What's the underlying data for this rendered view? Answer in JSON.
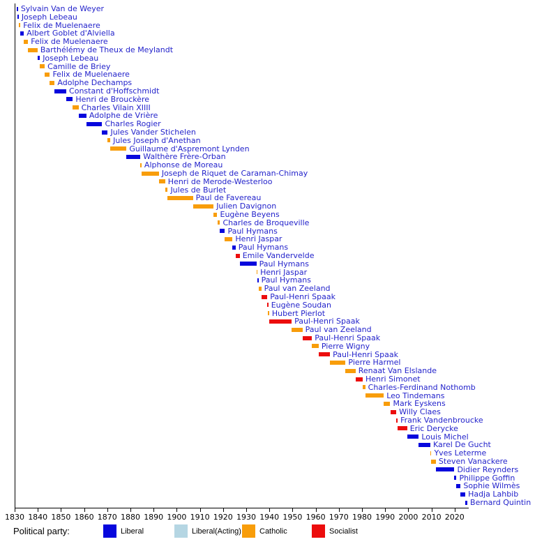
{
  "chart_data": {
    "type": "timeline",
    "title": "",
    "description": "Gantt-style timeline of Belgian foreign ministers colored by political party",
    "x_axis": {
      "min": 1830,
      "max": 2026,
      "tick_start": 1830,
      "tick_end": 2020,
      "tick_step": 10,
      "grid": false
    },
    "label_color": "#2323cb",
    "legend": {
      "title": "Political party:",
      "position": "bottom",
      "items": [
        {
          "label": "Liberal",
          "color": "#0707dd"
        },
        {
          "label": "Liberal(Acting)",
          "color": "#b5d6e3"
        },
        {
          "label": "Catholic",
          "color": "#f89d0a"
        },
        {
          "label": "Socialist",
          "color": "#ec0d0d"
        }
      ]
    },
    "ministers": [
      {
        "name": "Sylvain Van de Weyer",
        "party": "Liberal",
        "start": 1831.0,
        "end": 1831.3
      },
      {
        "name": "Joseph Lebeau",
        "party": "Liberal",
        "start": 1831.3,
        "end": 1831.7
      },
      {
        "name": "Felix de Muelenaere",
        "party": "Catholic",
        "start": 1831.7,
        "end": 1832.5
      },
      {
        "name": "Albert Goblet d'Alviella",
        "party": "Liberal",
        "start": 1832.5,
        "end": 1834.0
      },
      {
        "name": "Felix de Muelenaere",
        "party": "Catholic",
        "start": 1834.0,
        "end": 1835.8
      },
      {
        "name": "Barthélémy de Theux de Meylandt",
        "party": "Catholic",
        "start": 1835.8,
        "end": 1839.9
      },
      {
        "name": "Joseph Lebeau",
        "party": "Liberal",
        "start": 1839.9,
        "end": 1840.9
      },
      {
        "name": "Camille de Briey",
        "party": "Catholic",
        "start": 1840.9,
        "end": 1843.0
      },
      {
        "name": "Felix de Muelenaere",
        "party": "Catholic",
        "start": 1843.0,
        "end": 1845.2
      },
      {
        "name": "Adolphe Dechamps",
        "party": "Catholic",
        "start": 1845.2,
        "end": 1847.3
      },
      {
        "name": "Constant d'Hoffschmidt",
        "party": "Liberal",
        "start": 1847.3,
        "end": 1852.3
      },
      {
        "name": "Henri de Brouckère",
        "party": "Liberal",
        "start": 1852.3,
        "end": 1855.1
      },
      {
        "name": "Charles Vilain XIIII",
        "party": "Catholic",
        "start": 1855.1,
        "end": 1857.6
      },
      {
        "name": "Adolphe de Vrière",
        "party": "Liberal",
        "start": 1857.6,
        "end": 1861.0
      },
      {
        "name": "Charles Rogier",
        "party": "Liberal",
        "start": 1861.0,
        "end": 1867.8
      },
      {
        "name": "Jules Vander Stichelen",
        "party": "Liberal",
        "start": 1867.8,
        "end": 1870.2
      },
      {
        "name": "Jules Joseph d'Anethan",
        "party": "Catholic",
        "start": 1870.2,
        "end": 1871.3
      },
      {
        "name": "Guillaume d'Aspremont Lynden",
        "party": "Catholic",
        "start": 1871.3,
        "end": 1878.3
      },
      {
        "name": "Walthère Frère-Orban",
        "party": "Liberal",
        "start": 1878.3,
        "end": 1884.3
      },
      {
        "name": "Alphonse de Moreau",
        "party": "Catholic",
        "start": 1884.3,
        "end": 1884.8
      },
      {
        "name": "Joseph de Riquet de Caraman-Chimay",
        "party": "Catholic",
        "start": 1884.8,
        "end": 1892.3
      },
      {
        "name": "Henri de Merode-Westerloo",
        "party": "Catholic",
        "start": 1892.3,
        "end": 1895.0
      },
      {
        "name": "Jules de Burlet",
        "party": "Catholic",
        "start": 1895.0,
        "end": 1896.1
      },
      {
        "name": "Paul de Favereau",
        "party": "Catholic",
        "start": 1896.1,
        "end": 1907.0
      },
      {
        "name": "Julien Davignon",
        "party": "Catholic",
        "start": 1907.0,
        "end": 1915.9
      },
      {
        "name": "Eugène Beyens",
        "party": "Catholic",
        "start": 1915.9,
        "end": 1917.5
      },
      {
        "name": "Charles de Broqueville",
        "party": "Catholic",
        "start": 1917.5,
        "end": 1918.7
      },
      {
        "name": "Paul Hymans",
        "party": "Liberal",
        "start": 1918.7,
        "end": 1920.8
      },
      {
        "name": "Henri Jaspar",
        "party": "Catholic",
        "start": 1920.8,
        "end": 1924.1
      },
      {
        "name": "Paul Hymans",
        "party": "Liberal",
        "start": 1924.1,
        "end": 1925.4
      },
      {
        "name": "Emile Vandervelde",
        "party": "Socialist",
        "start": 1925.4,
        "end": 1927.2
      },
      {
        "name": "Paul Hymans",
        "party": "Liberal",
        "start": 1927.2,
        "end": 1934.4
      },
      {
        "name": "Henri Jaspar",
        "party": "Catholic",
        "start": 1934.4,
        "end": 1934.8
      },
      {
        "name": "Paul Hymans",
        "party": "Liberal",
        "start": 1934.8,
        "end": 1935.3
      },
      {
        "name": "Paul van Zeeland",
        "party": "Catholic",
        "start": 1935.3,
        "end": 1936.5
      },
      {
        "name": "Paul-Henri Spaak",
        "party": "Socialist",
        "start": 1936.5,
        "end": 1939.1
      },
      {
        "name": "Eugène Soudan",
        "party": "Socialist",
        "start": 1939.1,
        "end": 1939.4
      },
      {
        "name": "Hubert Pierlot",
        "party": "Catholic",
        "start": 1939.4,
        "end": 1939.9
      },
      {
        "name": "Paul-Henri Spaak",
        "party": "Socialist",
        "start": 1939.9,
        "end": 1949.6
      },
      {
        "name": "Paul van Zeeland",
        "party": "Catholic",
        "start": 1949.6,
        "end": 1954.3
      },
      {
        "name": "Paul-Henri Spaak",
        "party": "Socialist",
        "start": 1954.3,
        "end": 1958.4
      },
      {
        "name": "Pierre Wigny",
        "party": "Catholic",
        "start": 1958.4,
        "end": 1961.3
      },
      {
        "name": "Paul-Henri Spaak",
        "party": "Socialist",
        "start": 1961.3,
        "end": 1966.2
      },
      {
        "name": "Pierre Harmel",
        "party": "Catholic",
        "start": 1966.2,
        "end": 1972.9
      },
      {
        "name": "Renaat Van Elslande",
        "party": "Catholic",
        "start": 1972.9,
        "end": 1977.2
      },
      {
        "name": "Henri Simonet",
        "party": "Socialist",
        "start": 1977.2,
        "end": 1980.3
      },
      {
        "name": "Charles-Ferdinand Nothomb",
        "party": "Catholic",
        "start": 1980.3,
        "end": 1981.4
      },
      {
        "name": "Leo Tindemans",
        "party": "Catholic",
        "start": 1981.4,
        "end": 1989.4
      },
      {
        "name": "Mark Eyskens",
        "party": "Catholic",
        "start": 1989.4,
        "end": 1992.2
      },
      {
        "name": "Willy Claes",
        "party": "Socialist",
        "start": 1992.2,
        "end": 1994.8
      },
      {
        "name": "Frank Vandenbroucke",
        "party": "Socialist",
        "start": 1994.8,
        "end": 1995.4
      },
      {
        "name": "Eric Derycke",
        "party": "Socialist",
        "start": 1995.4,
        "end": 1999.5
      },
      {
        "name": "Louis Michel",
        "party": "Liberal",
        "start": 1999.5,
        "end": 2004.5
      },
      {
        "name": "Karel De Gucht",
        "party": "Liberal",
        "start": 2004.5,
        "end": 2009.5
      },
      {
        "name": "Yves Leterme",
        "party": "Catholic",
        "start": 2009.5,
        "end": 2009.9
      },
      {
        "name": "Steven Vanackere",
        "party": "Catholic",
        "start": 2009.9,
        "end": 2011.9
      },
      {
        "name": "Didier Reynders",
        "party": "Liberal",
        "start": 2011.9,
        "end": 2019.9
      },
      {
        "name": "Philippe Goffin",
        "party": "Liberal",
        "start": 2019.9,
        "end": 2020.8
      },
      {
        "name": "Sophie Wilmès",
        "party": "Liberal",
        "start": 2020.8,
        "end": 2022.6
      },
      {
        "name": "Hadja Lahbib",
        "party": "Liberal",
        "start": 2022.6,
        "end": 2024.6
      },
      {
        "name": "Bernard Quintin",
        "party": "Liberal",
        "start": 2024.6,
        "end": 2025.5
      }
    ]
  }
}
